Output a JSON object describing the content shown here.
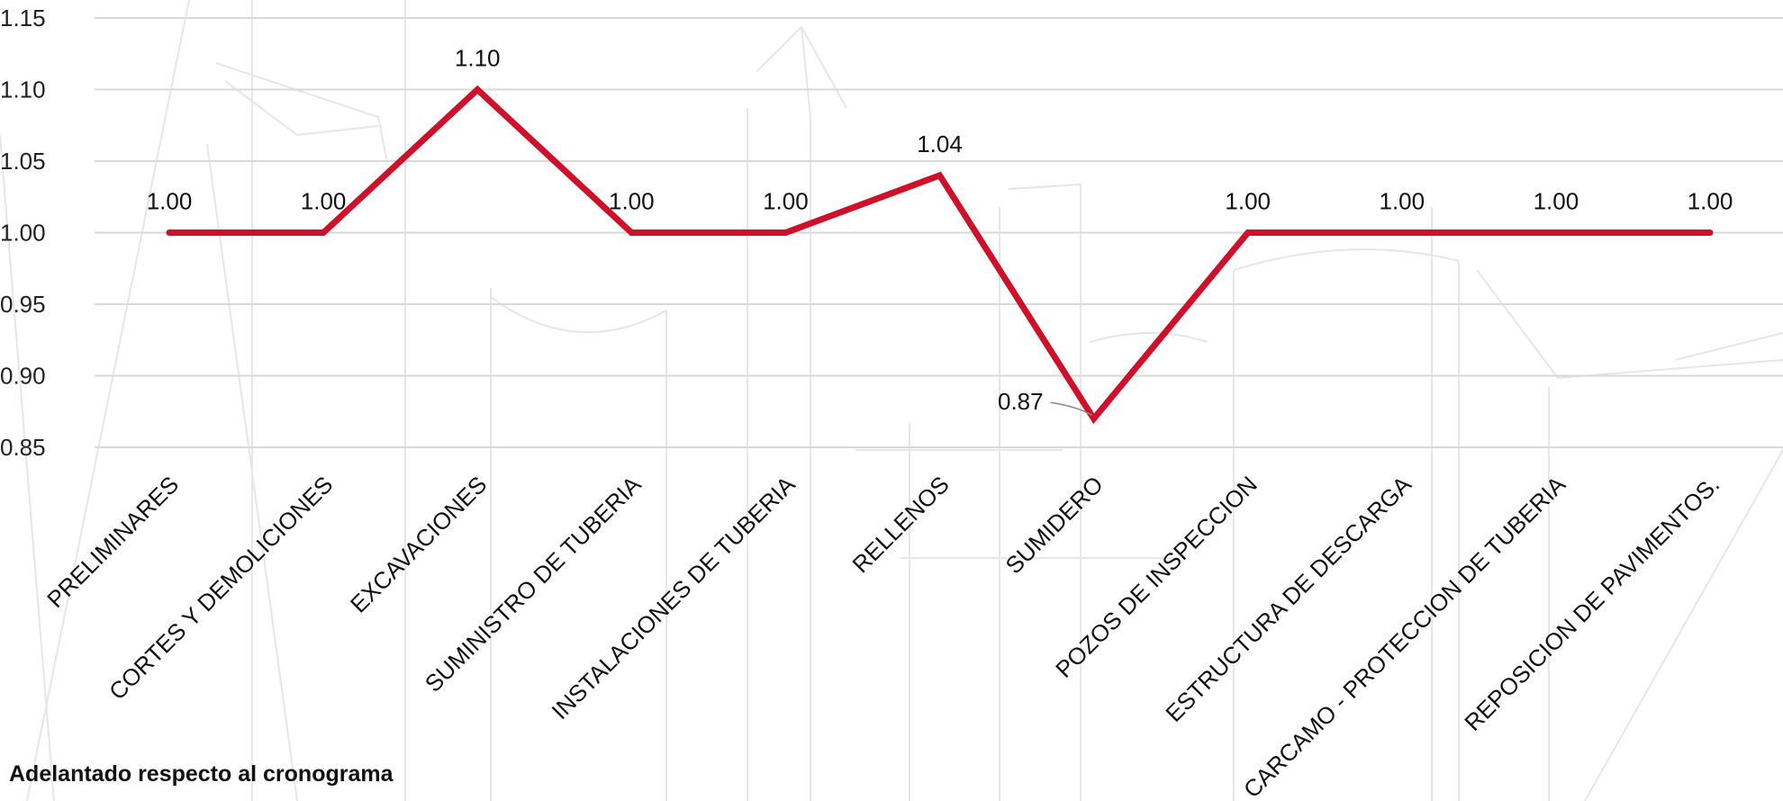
{
  "chart_data": {
    "type": "line",
    "categories": [
      "PRELIMINARES",
      "CORTES Y DEMOLICIONES",
      "EXCAVACIONES",
      "SUMINISTRO DE TUBERIA",
      "INSTALACIONES DE TUBERIA",
      "RELLENOS",
      "SUMIDERO",
      "POZOS DE INSPECCION",
      "ESTRUCTURA DE DESCARGA",
      "CARCAMO - PROTECCION DE TUBERIA",
      "REPOSICION DE PAVIMENTOS."
    ],
    "values": [
      1.0,
      1.0,
      1.1,
      1.0,
      1.0,
      1.04,
      0.87,
      1.0,
      1.0,
      1.0,
      1.0
    ],
    "data_labels": [
      "1.00",
      "1.00",
      "1.10",
      "1.00",
      "1.00",
      "1.04",
      "0.87",
      "1.00",
      "1.00",
      "1.00",
      "1.00"
    ],
    "ylim": [
      0.85,
      1.15
    ],
    "yticks": [
      "0.85",
      "0.90",
      "0.95",
      "1.00",
      "1.05",
      "1.10",
      "1.15"
    ],
    "grid": true,
    "line_color": "#d0102a",
    "title": "",
    "xlabel": "",
    "ylabel": ""
  },
  "note": "Adelantado respecto al cronograma"
}
